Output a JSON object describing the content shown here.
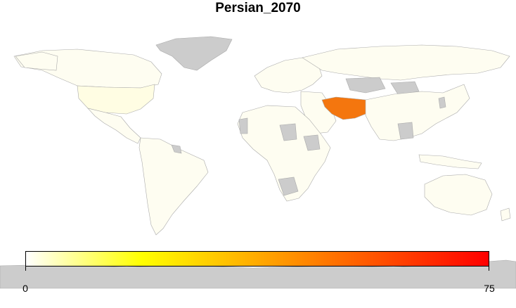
{
  "title": "Persian_2070",
  "legend": {
    "min_label": "0",
    "max_label": "75",
    "gradient": [
      "#ffffff",
      "#ffff00",
      "#ff9900",
      "#ff0000"
    ]
  },
  "colors": {
    "no_data": "#cccccc",
    "low": "#fefdf1",
    "usa": "#fffde3",
    "highlight": "#f4760e",
    "border": "#aaaaaa"
  },
  "highlighted_regions": [
    {
      "name": "Iran",
      "value": 45
    },
    {
      "name": "Afghanistan",
      "value": 45
    }
  ]
}
